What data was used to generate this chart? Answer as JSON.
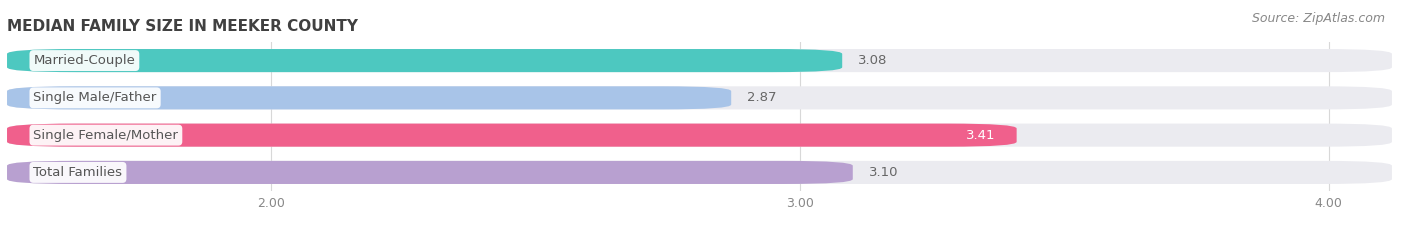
{
  "title": "Median Family Size in Meeker County",
  "title_display": "MEDIAN FAMILY SIZE IN MEEKER COUNTY",
  "source": "Source: ZipAtlas.com",
  "categories": [
    "Married-Couple",
    "Single Male/Father",
    "Single Female/Mother",
    "Total Families"
  ],
  "values": [
    3.08,
    2.87,
    3.41,
    3.1
  ],
  "bar_colors": [
    "#4dc8c0",
    "#a8c4e8",
    "#f0608c",
    "#b8a0d0"
  ],
  "value_in_bar": [
    false,
    false,
    true,
    false
  ],
  "xlim_data": [
    2.0,
    4.0
  ],
  "xaxis_min": 2.0,
  "xaxis_max": 4.0,
  "xticks": [
    2.0,
    3.0,
    4.0
  ],
  "xtick_labels": [
    "2.00",
    "3.00",
    "4.00"
  ],
  "bar_height": 0.62,
  "bar_gap": 0.38,
  "title_fontsize": 11,
  "label_fontsize": 9.5,
  "value_fontsize": 9.5,
  "tick_fontsize": 9,
  "source_fontsize": 9,
  "background_color": "#ffffff",
  "bar_bg_color": "#ebebf0",
  "grid_color": "#d8d8d8",
  "label_text_color": "#555555",
  "value_text_color_outside": "#666666",
  "value_text_color_inside": "#ffffff"
}
